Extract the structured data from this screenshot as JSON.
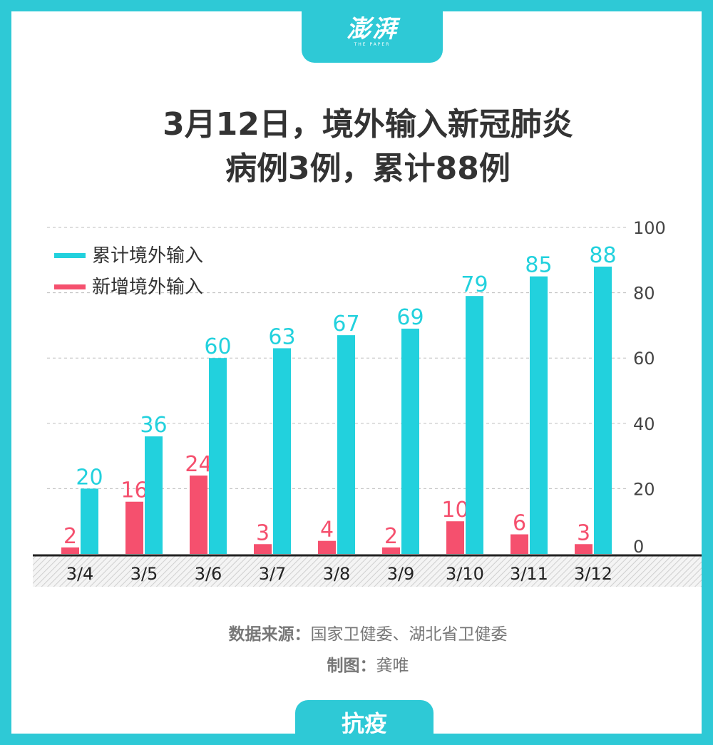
{
  "header": {
    "logo_text": "澎湃",
    "logo_subtext": "THE PAPER"
  },
  "title_lines": [
    "3月12日，境外输入新冠肺炎",
    "病例3例，累计88例"
  ],
  "footer": {
    "source_label": "数据来源：",
    "source_value": "国家卫健委、湖北省卫健委",
    "author_label": "制图：",
    "author_value": "龚唯"
  },
  "bottom_tab": {
    "label": "抗疫"
  },
  "colors": {
    "frame": "#2ec9d6",
    "cumulative": "#22d1dd",
    "new": "#f5506e",
    "text": "#333333"
  },
  "chart_data": {
    "type": "bar",
    "categories": [
      "3/4",
      "3/5",
      "3/6",
      "3/7",
      "3/8",
      "3/9",
      "3/10",
      "3/11",
      "3/12"
    ],
    "series": [
      {
        "name": "新增境外输入",
        "values": [
          2,
          16,
          24,
          3,
          4,
          2,
          10,
          6,
          3
        ]
      },
      {
        "name": "累计境外输入",
        "values": [
          20,
          36,
          60,
          63,
          67,
          69,
          79,
          85,
          88
        ]
      }
    ],
    "y_ticks": [
      0,
      20,
      40,
      60,
      80,
      100
    ],
    "ylim": [
      0,
      100
    ],
    "grid": true,
    "y_axis_position": "right",
    "legend": [
      "累计境外输入",
      "新增境外输入"
    ],
    "legend_position": "top-left",
    "data_labels": true
  }
}
